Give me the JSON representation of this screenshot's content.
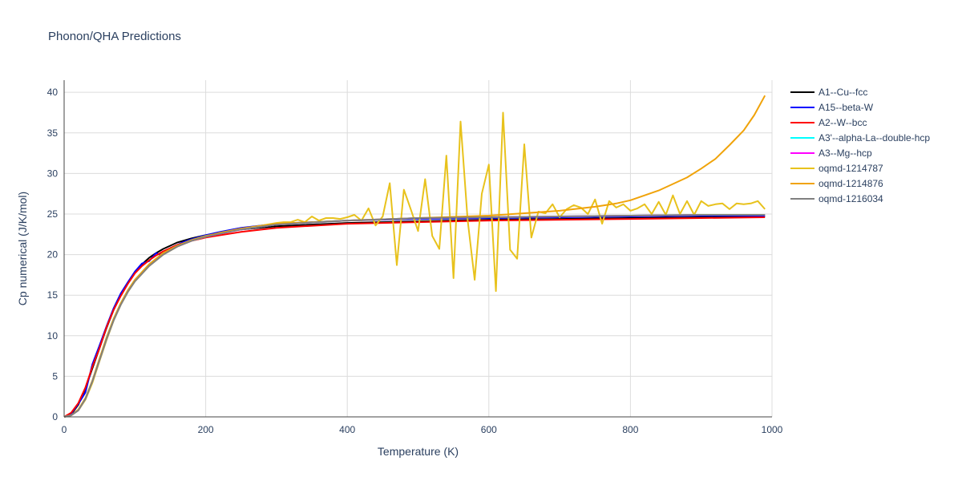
{
  "chart_data": {
    "type": "line",
    "title": "Phonon/QHA Predictions",
    "xlabel": "Temperature (K)",
    "ylabel": "Cp numerical (J/K/mol)",
    "xlim": [
      0,
      1000
    ],
    "ylim": [
      0,
      41.5
    ],
    "xticks": [
      0,
      200,
      400,
      600,
      800,
      1000
    ],
    "yticks": [
      0,
      5,
      10,
      15,
      20,
      25,
      30,
      35,
      40
    ],
    "grid": true,
    "legend_position": "right",
    "series": [
      {
        "name": "A1--Cu--fcc",
        "color": "#000000",
        "x": [
          0,
          10,
          20,
          30,
          40,
          50,
          60,
          70,
          80,
          90,
          100,
          110,
          120,
          130,
          140,
          150,
          160,
          180,
          200,
          250,
          300,
          400,
          500,
          600,
          700,
          800,
          900,
          990
        ],
        "y": [
          0,
          0.3,
          1.5,
          3.5,
          6.0,
          8.5,
          11.0,
          13.2,
          15.0,
          16.5,
          17.8,
          18.8,
          19.6,
          20.2,
          20.7,
          21.1,
          21.5,
          22.0,
          22.4,
          23.1,
          23.5,
          23.9,
          24.1,
          24.3,
          24.4,
          24.5,
          24.6,
          24.7
        ]
      },
      {
        "name": "A15--beta-W",
        "color": "#0000ff",
        "x": [
          0,
          10,
          20,
          30,
          40,
          50,
          60,
          70,
          80,
          90,
          100,
          110,
          120,
          130,
          135,
          140,
          150,
          160,
          170,
          180,
          200,
          220,
          250,
          300,
          400,
          500,
          600,
          700,
          800,
          900,
          990
        ],
        "y": [
          0,
          0.4,
          1.6,
          3.0,
          6.5,
          8.8,
          11.2,
          13.4,
          15.2,
          16.6,
          17.9,
          18.9,
          19.2,
          20.2,
          20.0,
          20.1,
          20.8,
          21.2,
          21.6,
          21.9,
          22.4,
          22.8,
          23.3,
          23.8,
          24.2,
          24.4,
          24.5,
          24.6,
          24.7,
          24.8,
          24.8
        ]
      },
      {
        "name": "A2--W--bcc",
        "color": "#ff0000",
        "x": [
          0,
          10,
          20,
          30,
          40,
          50,
          60,
          70,
          80,
          90,
          100,
          110,
          120,
          130,
          140,
          150,
          160,
          180,
          200,
          250,
          300,
          400,
          500,
          600,
          700,
          800,
          900,
          990
        ],
        "y": [
          0,
          0.5,
          1.7,
          3.6,
          6.2,
          8.5,
          11.1,
          13.2,
          14.9,
          16.4,
          17.7,
          18.6,
          19.3,
          19.9,
          20.4,
          20.8,
          21.2,
          21.7,
          22.1,
          22.8,
          23.3,
          23.8,
          24.0,
          24.2,
          24.3,
          24.4,
          24.5,
          24.6
        ]
      },
      {
        "name": "A3'--alpha-La--double-hcp",
        "color": "#00ffff",
        "x": [
          0,
          10,
          20,
          30,
          40,
          50,
          60,
          70,
          80,
          90,
          100,
          120,
          140,
          160,
          180,
          200,
          250,
          300,
          400,
          500,
          600,
          700,
          800,
          900,
          990
        ],
        "y": [
          0,
          0.2,
          0.8,
          2.2,
          4.4,
          7.1,
          9.8,
          12.1,
          14.0,
          15.6,
          16.9,
          18.8,
          20.2,
          21.1,
          21.8,
          22.3,
          23.1,
          23.7,
          24.2,
          24.5,
          24.6,
          24.7,
          24.8,
          24.9,
          24.9
        ]
      },
      {
        "name": "A3--Mg--hcp",
        "color": "#ff00ff",
        "x": [
          0,
          10,
          20,
          30,
          40,
          50,
          60,
          70,
          80,
          90,
          100,
          120,
          140,
          160,
          180,
          200,
          250,
          300,
          400,
          500,
          600,
          700,
          800,
          900,
          990
        ],
        "y": [
          0,
          0.2,
          0.8,
          2.2,
          4.3,
          7.0,
          9.7,
          12.0,
          13.9,
          15.5,
          16.8,
          18.7,
          20.1,
          21.0,
          21.7,
          22.2,
          23.1,
          23.7,
          24.2,
          24.5,
          24.6,
          24.7,
          24.8,
          24.9,
          24.9
        ]
      },
      {
        "name": "oqmd-1214787",
        "color": "#e8c21c",
        "x": [
          0,
          10,
          20,
          30,
          40,
          50,
          60,
          70,
          80,
          90,
          100,
          120,
          140,
          160,
          180,
          200,
          220,
          250,
          280,
          300,
          310,
          320,
          330,
          340,
          350,
          360,
          370,
          380,
          390,
          400,
          410,
          420,
          430,
          440,
          450,
          460,
          470,
          480,
          490,
          500,
          510,
          520,
          530,
          540,
          550,
          560,
          570,
          580,
          590,
          600,
          610,
          620,
          630,
          640,
          650,
          660,
          670,
          680,
          690,
          700,
          710,
          720,
          730,
          740,
          750,
          760,
          770,
          780,
          790,
          800,
          810,
          820,
          830,
          840,
          850,
          860,
          870,
          880,
          890,
          900,
          910,
          920,
          930,
          940,
          950,
          960,
          970,
          980,
          990
        ],
        "y": [
          0,
          0.2,
          0.8,
          2.1,
          4.2,
          6.9,
          9.5,
          11.9,
          13.8,
          15.4,
          16.7,
          18.6,
          20.0,
          21.0,
          21.7,
          22.2,
          22.7,
          23.2,
          23.6,
          23.9,
          24.0,
          24.0,
          24.3,
          24.0,
          24.7,
          24.2,
          24.5,
          24.5,
          24.4,
          24.6,
          24.9,
          24.2,
          25.7,
          23.6,
          24.7,
          28.8,
          18.7,
          28.0,
          25.5,
          22.9,
          29.3,
          22.3,
          20.7,
          32.2,
          17.1,
          36.4,
          24.3,
          16.9,
          27.5,
          31.1,
          15.5,
          37.5,
          20.6,
          19.5,
          33.6,
          22.1,
          25.3,
          25.1,
          26.2,
          24.6,
          25.6,
          26.1,
          25.8,
          25.0,
          26.8,
          23.8,
          26.6,
          25.8,
          26.2,
          25.4,
          25.7,
          26.2,
          25.0,
          26.5,
          24.9,
          27.3,
          25.0,
          26.6,
          24.9,
          26.6,
          26.0,
          26.2,
          26.3,
          25.6,
          26.3,
          26.2,
          26.3,
          26.6,
          25.6
        ]
      },
      {
        "name": "oqmd-1214876",
        "color": "#f0a30a",
        "x": [
          0,
          10,
          20,
          30,
          40,
          50,
          60,
          70,
          80,
          90,
          100,
          120,
          140,
          160,
          180,
          200,
          250,
          300,
          400,
          500,
          600,
          650,
          700,
          750,
          780,
          800,
          820,
          840,
          860,
          880,
          900,
          920,
          940,
          960,
          975,
          990
        ],
        "y": [
          0,
          0.2,
          0.9,
          2.3,
          4.5,
          7.2,
          9.8,
          12.1,
          14.0,
          15.6,
          16.9,
          18.8,
          20.2,
          21.1,
          21.8,
          22.3,
          23.2,
          23.8,
          24.2,
          24.5,
          24.8,
          25.1,
          25.4,
          25.9,
          26.3,
          26.7,
          27.3,
          27.9,
          28.7,
          29.5,
          30.6,
          31.8,
          33.5,
          35.3,
          37.2,
          39.6
        ]
      },
      {
        "name": "oqmd-1216034",
        "color": "#808080",
        "x": [
          0,
          10,
          20,
          30,
          40,
          50,
          60,
          70,
          80,
          90,
          100,
          120,
          140,
          160,
          180,
          200,
          250,
          300,
          400,
          500,
          600,
          700,
          800,
          900,
          990
        ],
        "y": [
          0,
          0.2,
          0.8,
          2.2,
          4.4,
          7.0,
          9.6,
          11.9,
          13.8,
          15.4,
          16.7,
          18.6,
          20.0,
          21.0,
          21.7,
          22.2,
          23.1,
          23.7,
          24.2,
          24.5,
          24.6,
          24.7,
          24.8,
          24.9,
          24.9
        ]
      }
    ]
  }
}
